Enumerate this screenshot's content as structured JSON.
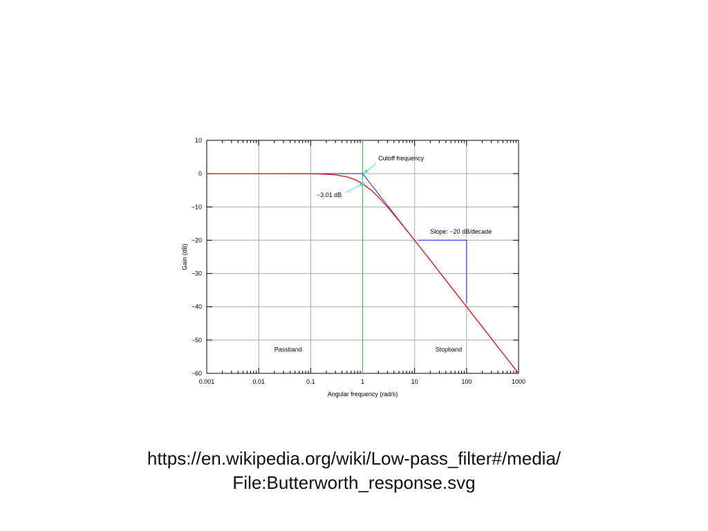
{
  "chart_data": {
    "type": "line",
    "xscale": "log",
    "xlim": [
      0.001,
      1000
    ],
    "ylim": [
      -60,
      10
    ],
    "xlabel": "Angular frequency (rad/s)",
    "ylabel": "Gain (dB)",
    "x_ticks": [
      0.001,
      0.01,
      0.1,
      1,
      10,
      100,
      1000
    ],
    "x_tick_labels": [
      "0.001",
      "0.01",
      "0.1",
      "1",
      "10",
      "100",
      "1000"
    ],
    "y_ticks": [
      10,
      0,
      -10,
      -20,
      -30,
      -40,
      -50,
      -60
    ],
    "y_tick_labels": [
      "10",
      "0",
      "−10",
      "−20",
      "−30",
      "−40",
      "−50",
      "−60"
    ],
    "grid": true,
    "series": [
      {
        "color": "#d62020",
        "x": [
          0.001,
          0.01,
          0.1,
          0.2,
          0.3,
          0.5,
          0.7,
          1,
          1.5,
          2,
          3,
          5,
          7,
          10,
          20,
          50,
          100,
          200,
          500,
          1000
        ],
        "y": [
          0,
          0,
          -0.04,
          -0.17,
          -0.37,
          -0.97,
          -1.74,
          -3.01,
          -5.12,
          -6.99,
          -10.0,
          -14.15,
          -17.0,
          -20.04,
          -26.0,
          -34.0,
          -40.0,
          -46.0,
          -54.0,
          -60.0
        ]
      },
      {
        "color": "#2020d0",
        "x": [
          0.001,
          1,
          1000
        ],
        "y": [
          0,
          0,
          -60
        ]
      }
    ],
    "reference_lines": [
      {
        "axis": "x",
        "value": 1,
        "color": "#33bb33"
      }
    ],
    "slope_marker": {
      "color": "#2020d0",
      "points": [
        [
          12,
          -20
        ],
        [
          100,
          -20
        ],
        [
          100,
          -39
        ]
      ]
    },
    "annotations": [
      {
        "text": "Cutoff frequency",
        "x": 2,
        "y": 4,
        "arrow_to": [
          1,
          0
        ],
        "arrow_color": "#40e0e0"
      },
      {
        "text": "−3.01 dB",
        "x": 0.13,
        "y": -7,
        "arrow_to": [
          1,
          -3.01
        ],
        "arrow_color": "#40e0e0"
      },
      {
        "text": "Slope: −20 dB/decade",
        "x": 20,
        "y": -18,
        "arrow_to": null,
        "arrow_color": null
      },
      {
        "text": "Passband",
        "x": 0.02,
        "y": -53.5,
        "arrow_to": null,
        "arrow_color": null
      },
      {
        "text": "Stopband",
        "x": 25,
        "y": -53.5,
        "arrow_to": null,
        "arrow_color": null
      }
    ]
  },
  "caption": {
    "line1": "https://en.wikipedia.org/wiki/Low-pass_filter#/media/",
    "line2": "File:Butterworth_response.svg"
  }
}
